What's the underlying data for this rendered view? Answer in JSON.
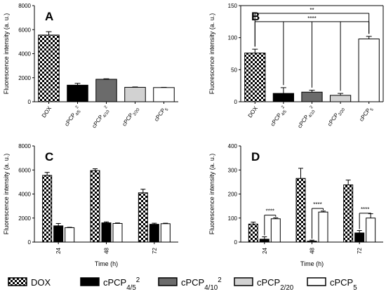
{
  "legend": [
    {
      "label": "DOX",
      "fill": "checker"
    },
    {
      "label": "cPCP",
      "sub": "4/5",
      "sup": "2",
      "fill": "#000000"
    },
    {
      "label": "cPCP",
      "sub": "4/10",
      "sup": "2",
      "fill": "#6b6b6b"
    },
    {
      "label": "cPCP",
      "sub": "2/20",
      "sup": "",
      "fill": "#d2d2d2"
    },
    {
      "label": "cPCP",
      "sub": "5",
      "sup": "",
      "fill": "#ffffff"
    }
  ],
  "colors": {
    "cPCP4/5_2": "#000000",
    "cPCP4/10_2": "#6b6b6b",
    "cPCP2/20": "#d2d2d2",
    "cPCP5": "#ffffff",
    "DOX": "checker"
  },
  "chart_data": [
    {
      "panel": "A",
      "type": "bar",
      "ylabel": "Fluorescence intensity (a. u.)",
      "xlabel": "",
      "ylim": [
        0,
        8000
      ],
      "yticks": [
        0,
        2000,
        4000,
        6000,
        8000
      ],
      "categories": [
        {
          "label": "DOX",
          "sub": "",
          "sup": ""
        },
        {
          "label": "cPCP",
          "sub": "4/5",
          "sup": "2"
        },
        {
          "label": "cPCP",
          "sub": "4/10",
          "sup": "2"
        },
        {
          "label": "cPCP",
          "sub": "2/20",
          "sup": ""
        },
        {
          "label": "cPCP",
          "sub": "5",
          "sup": ""
        }
      ],
      "values": [
        5550,
        1380,
        1870,
        1200,
        1180
      ],
      "errors": [
        280,
        150,
        40,
        30,
        20
      ],
      "fills": [
        "checker",
        "#000000",
        "#6b6b6b",
        "#d2d2d2",
        "#ffffff"
      ]
    },
    {
      "panel": "B",
      "type": "bar",
      "ylabel": "",
      "xlabel": "",
      "ylim": [
        0,
        150
      ],
      "yticks": [
        0,
        50,
        100,
        150
      ],
      "categories": [
        {
          "label": "DOX",
          "sub": "",
          "sup": ""
        },
        {
          "label": "cPCP",
          "sub": "4/5",
          "sup": "2"
        },
        {
          "label": "cPCP",
          "sub": "4/10",
          "sup": "2"
        },
        {
          "label": "cPCP",
          "sub": "2/20",
          "sup": ""
        },
        {
          "label": "cPCP",
          "sub": "5",
          "sup": ""
        }
      ],
      "values": [
        76,
        13,
        15,
        10,
        98
      ],
      "errors": [
        6,
        9,
        3,
        3,
        4
      ],
      "fills": [
        "checker",
        "#000000",
        "#6b6b6b",
        "#d2d2d2",
        "#ffffff"
      ],
      "annotations": [
        {
          "text": "**",
          "from": 0,
          "to": 4,
          "y": 138,
          "ticks": [
            4
          ]
        },
        {
          "text": "****",
          "from": 0,
          "to": 4,
          "y": 125,
          "ticks": [
            1,
            2,
            3,
            4
          ]
        }
      ]
    },
    {
      "panel": "C",
      "type": "bar",
      "ylabel": "Fluorescence intensity (a. u.)",
      "xlabel": "Time (h)",
      "ylim": [
        0,
        8000
      ],
      "yticks": [
        0,
        2000,
        4000,
        6000,
        8000
      ],
      "categories": [
        "24",
        "48",
        "72"
      ],
      "series": [
        {
          "name": "DOX",
          "fill": "checker",
          "values": [
            5550,
            5950,
            4100
          ],
          "errors": [
            250,
            150,
            300
          ]
        },
        {
          "name": "cPCP4/5 2",
          "fill": "#000000",
          "values": [
            1350,
            1600,
            1480
          ],
          "errors": [
            200,
            80,
            90
          ]
        },
        {
          "name": "cPCP5",
          "fill": "#ffffff",
          "values": [
            1200,
            1550,
            1530
          ],
          "errors": [
            30,
            40,
            40
          ]
        }
      ]
    },
    {
      "panel": "D",
      "type": "bar",
      "ylabel": "",
      "xlabel": "Time (h)",
      "ylim": [
        0,
        400
      ],
      "yticks": [
        0,
        100,
        200,
        300,
        400
      ],
      "categories": [
        "24",
        "48",
        "72"
      ],
      "series": [
        {
          "name": "DOX",
          "fill": "checker",
          "values": [
            75,
            265,
            238
          ],
          "errors": [
            8,
            42,
            20
          ]
        },
        {
          "name": "cPCP4/5 2",
          "fill": "#000000",
          "values": [
            12,
            4,
            38
          ],
          "errors": [
            10,
            4,
            10
          ]
        },
        {
          "name": "cPCP5",
          "fill": "#ffffff",
          "values": [
            97,
            125,
            100
          ],
          "errors": [
            4,
            4,
            18
          ]
        }
      ],
      "annotations": [
        {
          "text": "****",
          "group": 0,
          "y": 112
        },
        {
          "text": "****",
          "group": 1,
          "y": 140
        },
        {
          "text": "****",
          "group": 2,
          "y": 120
        }
      ]
    }
  ]
}
